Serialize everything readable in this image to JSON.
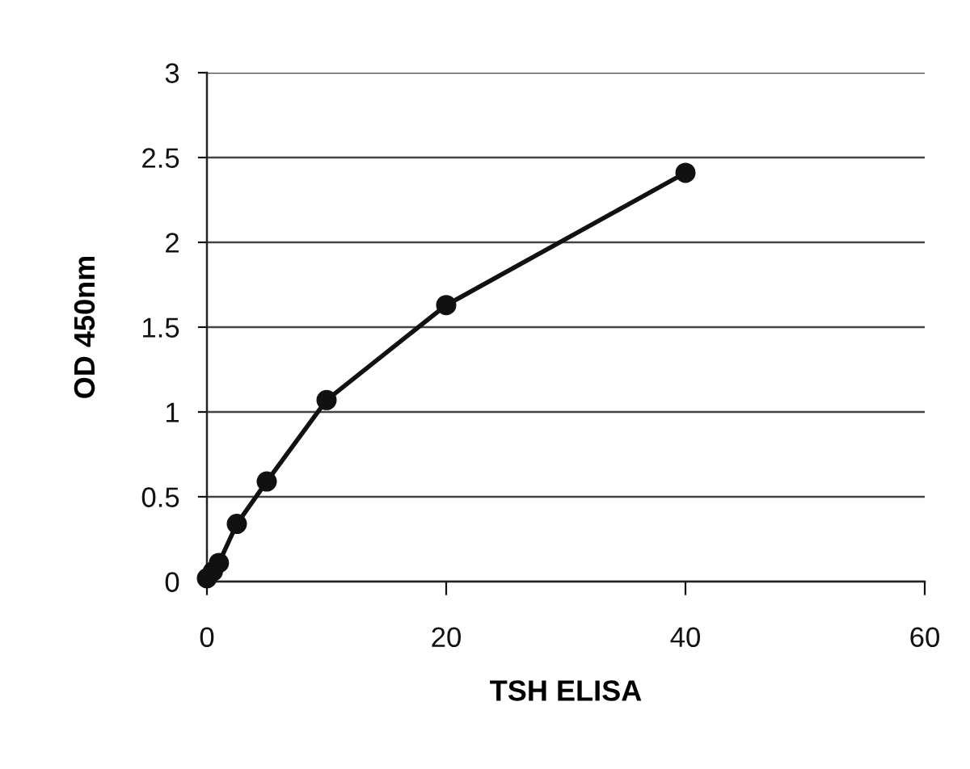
{
  "chart_data": {
    "type": "line",
    "xlabel": "TSH ELISA",
    "ylabel": "OD 450nm",
    "x": [
      0,
      0.5,
      1,
      2.5,
      5,
      10,
      20,
      40
    ],
    "values": [
      0.02,
      0.06,
      0.11,
      0.34,
      0.59,
      1.07,
      1.63,
      2.41
    ],
    "color": "#111111",
    "marker": "circle",
    "line_style": "solid",
    "grid": "y",
    "xlim": [
      0,
      60
    ],
    "xticks": [
      0,
      20,
      40,
      60
    ],
    "ylim": [
      0,
      3
    ],
    "yticks": [
      0,
      0.5,
      1,
      1.5,
      2,
      2.5,
      3
    ]
  }
}
